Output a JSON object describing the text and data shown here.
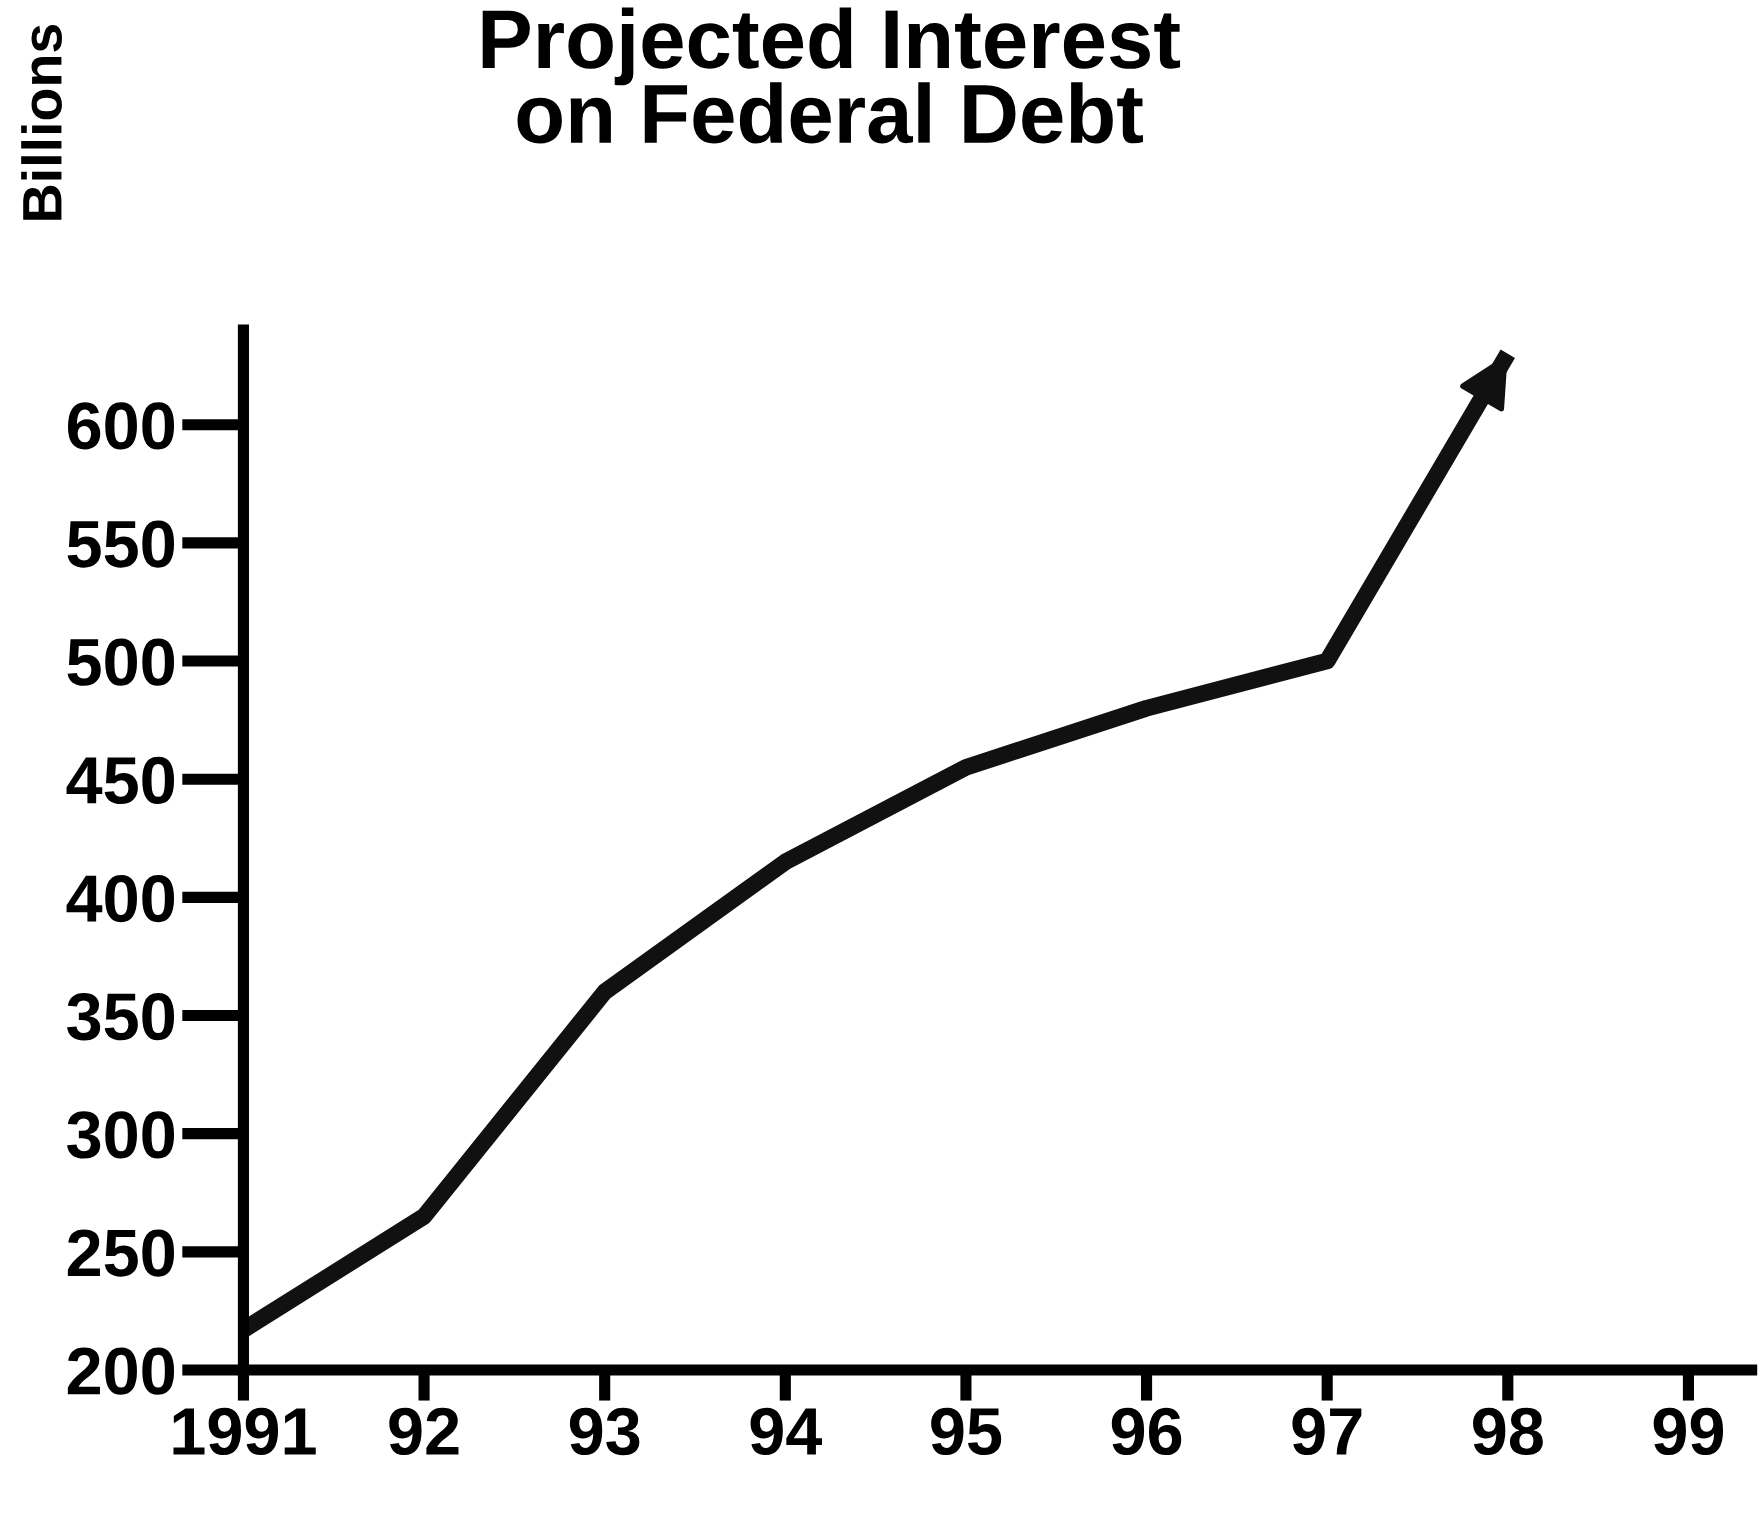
{
  "chart_data": {
    "type": "line",
    "title": "Projected Interest\non Federal Debt",
    "ylabel": "Billions",
    "x": [
      1991,
      1992,
      1993,
      1994,
      1995,
      1996,
      1997,
      1998
    ],
    "values": [
      217,
      265,
      360,
      415,
      455,
      480,
      500,
      630
    ],
    "color": "#111111",
    "marker": "none",
    "line_style": "solid",
    "xlim": [
      1991,
      1999.35
    ],
    "ylim": [
      200,
      640
    ],
    "xticks": [
      {
        "value": 1991,
        "label": "1991"
      },
      {
        "value": 1992,
        "label": "92"
      },
      {
        "value": 1993,
        "label": "93"
      },
      {
        "value": 1994,
        "label": "94"
      },
      {
        "value": 1995,
        "label": "95"
      },
      {
        "value": 1996,
        "label": "96"
      },
      {
        "value": 1997,
        "label": "97"
      },
      {
        "value": 1998,
        "label": "98"
      },
      {
        "value": 1999,
        "label": "99"
      }
    ],
    "yticks": [
      200,
      250,
      300,
      350,
      400,
      450,
      500,
      550,
      600
    ],
    "grid": false,
    "legend": false
  }
}
